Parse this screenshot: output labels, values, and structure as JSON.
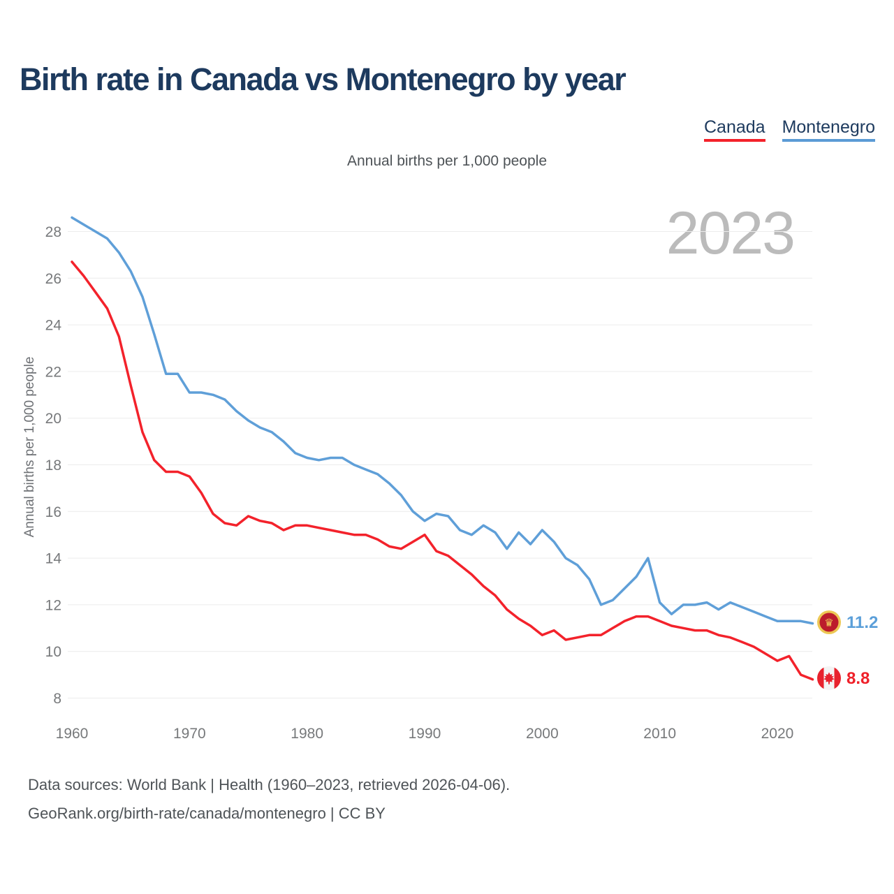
{
  "page": {
    "title": "Birth rate in Canada vs Montenegro by year",
    "subtitle": "Annual births per 1,000 people",
    "watermark": "2023",
    "footer_line1": "Data sources: World Bank | Health (1960–2023, retrieved 2026-04-06).",
    "footer_line2": "GeoRank.org/birth-rate/canada/montenegro | CC BY"
  },
  "legend": [
    {
      "label": "Canada",
      "color": "#f3222b"
    },
    {
      "label": "Montenegro",
      "color": "#5b9bd5"
    }
  ],
  "chart_data": {
    "type": "line",
    "title": "Birth rate in Canada vs Montenegro by year",
    "ylabel": "Annual births per 1,000 people",
    "xlabel": "",
    "ylim": [
      8,
      29
    ],
    "xlim": [
      1960,
      2023
    ],
    "grid": "horizontal",
    "legend_position": "top-right",
    "y_ticks": [
      8,
      10,
      12,
      14,
      16,
      18,
      20,
      22,
      24,
      26,
      28
    ],
    "x_ticks": [
      1960,
      1970,
      1980,
      1990,
      2000,
      2010,
      2020
    ],
    "x": [
      1960,
      1961,
      1962,
      1963,
      1964,
      1965,
      1966,
      1967,
      1968,
      1969,
      1970,
      1971,
      1972,
      1973,
      1974,
      1975,
      1976,
      1977,
      1978,
      1979,
      1980,
      1981,
      1982,
      1983,
      1984,
      1985,
      1986,
      1987,
      1988,
      1989,
      1990,
      1991,
      1992,
      1993,
      1994,
      1995,
      1996,
      1997,
      1998,
      1999,
      2000,
      2001,
      2002,
      2003,
      2004,
      2005,
      2006,
      2007,
      2008,
      2009,
      2010,
      2011,
      2012,
      2013,
      2014,
      2015,
      2016,
      2017,
      2018,
      2019,
      2020,
      2021,
      2022,
      2023
    ],
    "series": [
      {
        "name": "Canada",
        "color": "#f3222b",
        "end_label": "8.8",
        "flag": "canada",
        "values": [
          26.7,
          26.1,
          25.4,
          24.7,
          23.5,
          21.4,
          19.4,
          18.2,
          17.7,
          17.7,
          17.5,
          16.8,
          15.9,
          15.5,
          15.4,
          15.8,
          15.6,
          15.5,
          15.2,
          15.4,
          15.4,
          15.3,
          15.2,
          15.1,
          15.0,
          15.0,
          14.8,
          14.5,
          14.4,
          14.7,
          15.0,
          14.3,
          14.1,
          13.7,
          13.3,
          12.8,
          12.4,
          11.8,
          11.4,
          11.1,
          10.7,
          10.9,
          10.5,
          10.6,
          10.7,
          10.7,
          11.0,
          11.3,
          11.5,
          11.5,
          11.3,
          11.1,
          11.0,
          10.9,
          10.9,
          10.7,
          10.6,
          10.4,
          10.2,
          9.9,
          9.6,
          9.8,
          9.0,
          8.8
        ]
      },
      {
        "name": "Montenegro",
        "color": "#5f9fd8",
        "end_label": "11.2",
        "flag": "montenegro",
        "values": [
          28.6,
          28.3,
          28.0,
          27.7,
          27.1,
          26.3,
          25.2,
          23.6,
          21.9,
          21.9,
          21.1,
          21.1,
          21.0,
          20.8,
          20.3,
          19.9,
          19.6,
          19.4,
          19.0,
          18.5,
          18.3,
          18.2,
          18.3,
          18.3,
          18.0,
          17.8,
          17.6,
          17.2,
          16.7,
          16.0,
          15.6,
          15.9,
          15.8,
          15.2,
          15.0,
          15.4,
          15.1,
          14.4,
          15.1,
          14.6,
          15.2,
          14.7,
          14.0,
          13.7,
          13.1,
          12.0,
          12.2,
          12.7,
          13.2,
          14.0,
          12.1,
          11.6,
          12.0,
          12.0,
          12.1,
          11.8,
          12.1,
          11.9,
          11.7,
          11.5,
          11.3,
          11.3,
          11.3,
          11.2
        ]
      }
    ]
  }
}
